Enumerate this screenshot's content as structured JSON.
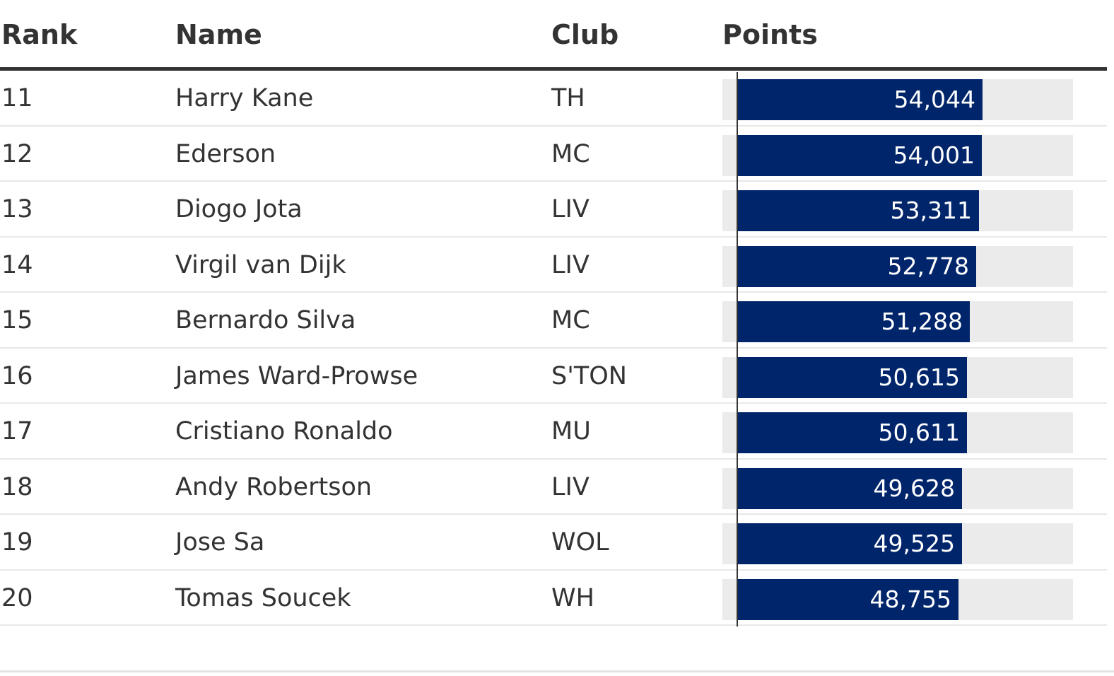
{
  "table": {
    "headers": {
      "rank": "Rank",
      "name": "Name",
      "club": "Club",
      "points": "Points"
    }
  },
  "colors": {
    "bar": "#00256b",
    "track": "#ebebeb",
    "text": "#333333"
  },
  "chart_data": {
    "type": "bar",
    "orientation": "horizontal",
    "xlim": [
      0,
      74000
    ],
    "rows": [
      {
        "rank": "11",
        "name": "Harry Kane",
        "club": "TH",
        "points": 54044,
        "label": "54,044"
      },
      {
        "rank": "12",
        "name": "Ederson",
        "club": "MC",
        "points": 54001,
        "label": "54,001"
      },
      {
        "rank": "13",
        "name": "Diogo Jota",
        "club": "LIV",
        "points": 53311,
        "label": "53,311"
      },
      {
        "rank": "14",
        "name": "Virgil van Dijk",
        "club": "LIV",
        "points": 52778,
        "label": "52,778"
      },
      {
        "rank": "15",
        "name": "Bernardo Silva",
        "club": "MC",
        "points": 51288,
        "label": "51,288"
      },
      {
        "rank": "16",
        "name": "James Ward-Prowse",
        "club": "S'TON",
        "points": 50615,
        "label": "50,615"
      },
      {
        "rank": "17",
        "name": "Cristiano Ronaldo",
        "club": "MU",
        "points": 50611,
        "label": "50,611"
      },
      {
        "rank": "18",
        "name": "Andy Robertson",
        "club": "LIV",
        "points": 49628,
        "label": "49,628"
      },
      {
        "rank": "19",
        "name": "Jose Sa",
        "club": "WOL",
        "points": 49525,
        "label": "49,525"
      },
      {
        "rank": "20",
        "name": "Tomas Soucek",
        "club": "WH",
        "points": 48755,
        "label": "48,755"
      }
    ]
  }
}
